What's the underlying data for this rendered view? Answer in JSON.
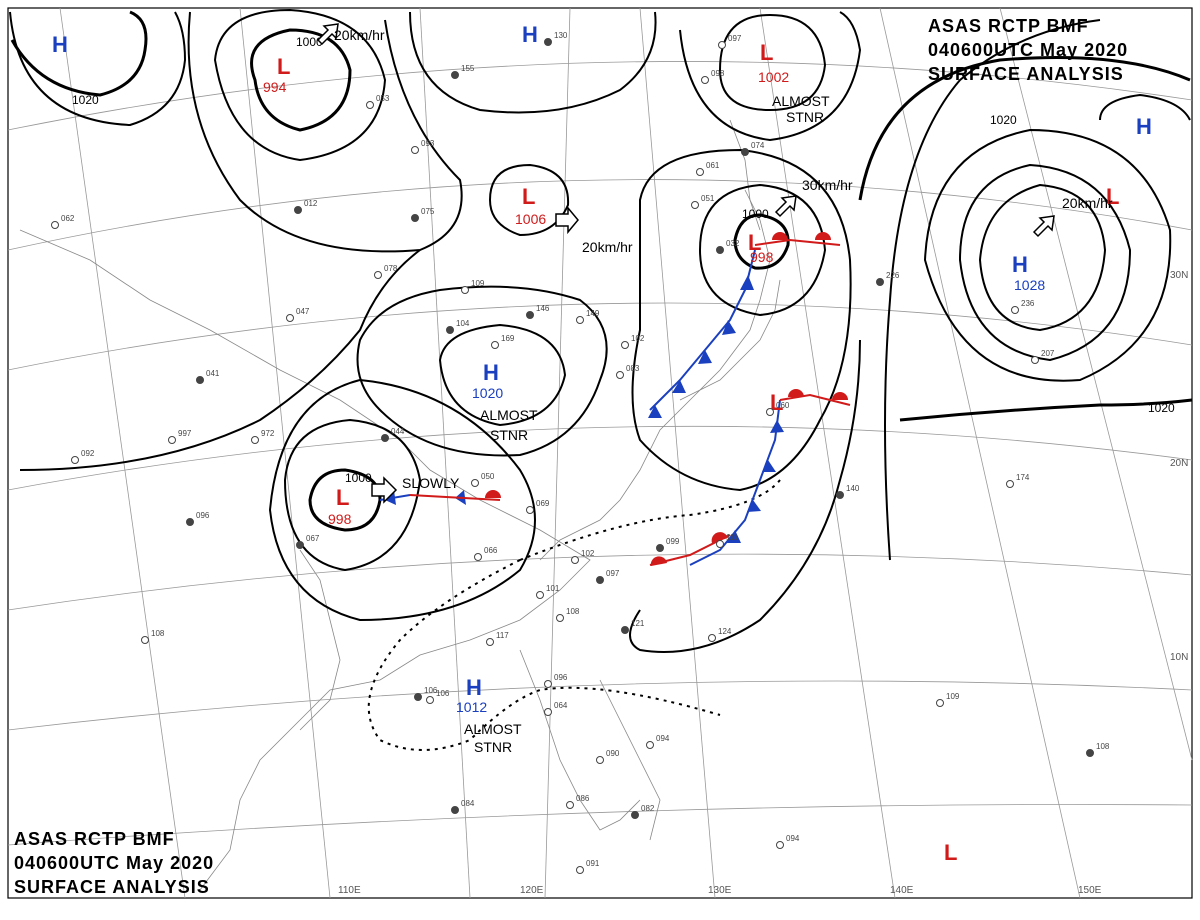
{
  "header": {
    "line1": "ASAS     RCTP    BMF",
    "line2": "040600UTC    May    2020",
    "line3": "SURFACE ANALYSIS"
  },
  "longitude_labels": [
    "110E",
    "120E",
    "130E",
    "140E",
    "150E"
  ],
  "latitude_labels": [
    "30N",
    "20N",
    "10N"
  ],
  "isobar_labels": [
    "1020",
    "1020",
    "1000",
    "1000",
    "1000",
    "1020"
  ],
  "systems": [
    {
      "symbol": "H",
      "pressure": "",
      "color": "#1a3fbf"
    },
    {
      "symbol": "H",
      "pressure": "",
      "color": "#1a3fbf"
    },
    {
      "symbol": "L",
      "pressure": "994",
      "color": "#d11a1a"
    },
    {
      "symbol": "L",
      "pressure": "1006",
      "color": "#d11a1a"
    },
    {
      "symbol": "L",
      "pressure": "1002",
      "color": "#d11a1a"
    },
    {
      "symbol": "L",
      "pressure": "998",
      "color": "#d11a1a"
    },
    {
      "symbol": "H",
      "pressure": "1020",
      "color": "#1a3fbf"
    },
    {
      "symbol": "L",
      "pressure": "998",
      "color": "#d11a1a"
    },
    {
      "symbol": "H",
      "pressure": "1028",
      "color": "#1a3fbf"
    },
    {
      "symbol": "H",
      "pressure": "",
      "color": "#1a3fbf"
    },
    {
      "symbol": "L",
      "pressure": "",
      "color": "#d11a1a"
    },
    {
      "symbol": "L",
      "pressure": "",
      "color": "#d11a1a"
    },
    {
      "symbol": "H",
      "pressure": "1012",
      "color": "#1a3fbf"
    },
    {
      "symbol": "L",
      "pressure": "",
      "color": "#d11a1a"
    }
  ],
  "motion_labels": [
    "20km/hr",
    "20km/hr",
    "30km/hr",
    "20km/hr",
    "SLOWLY"
  ],
  "notes": [
    "ALMOST",
    "STNR",
    "ALMOST",
    "STNR",
    "ALMOST",
    "STNR"
  ],
  "stations": [
    "155",
    "053",
    "093",
    "075",
    "078",
    "109",
    "146",
    "149",
    "169",
    "104",
    "102",
    "083",
    "041",
    "997",
    "972",
    "044",
    "050",
    "069",
    "067",
    "066",
    "102",
    "097",
    "101",
    "108",
    "121",
    "124",
    "117",
    "106",
    "096",
    "064",
    "084",
    "090",
    "094",
    "082",
    "086",
    "091",
    "226",
    "236",
    "207",
    "140",
    "174",
    "109",
    "108",
    "094",
    "092",
    "096",
    "108",
    "106",
    "099",
    "111",
    "060",
    "074",
    "061",
    "051",
    "032",
    "098",
    "097",
    "130",
    "062",
    "047",
    "012"
  ]
}
